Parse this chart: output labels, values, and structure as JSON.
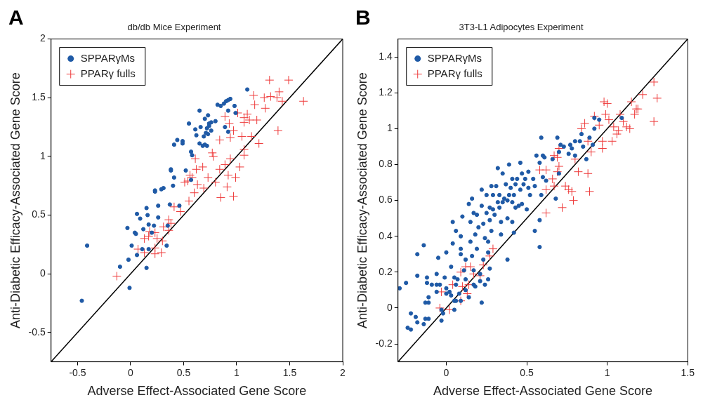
{
  "chart_data": [
    {
      "type": "scatter",
      "title": "db/db Mice Experiment",
      "xlabel": "Adverse Effect-Associated Gene Score",
      "ylabel": "Anti-Diabetic Efficacy-Associated Gene Score",
      "annotations": [
        "A"
      ],
      "legend": "top left",
      "grid": false,
      "xlim": [
        -0.75,
        2
      ],
      "xticks": [
        -0.5,
        0,
        0.5,
        1,
        1.5,
        2
      ],
      "ylim": [
        -0.75,
        2
      ],
      "yticks": [
        -0.5,
        0,
        0.5,
        1,
        1.5,
        2
      ],
      "series": [
        {
          "name": "SPPARγMs",
          "color": "#1f5aa6",
          "marker": "circle",
          "x": [
            -0.41,
            -0.46,
            -0.1,
            -0.02,
            -0.01,
            0.15,
            0.01,
            0.06,
            -0.03,
            0.04,
            0.05,
            0.06,
            0.09,
            0.15,
            0.16,
            0.12,
            0.17,
            0.22,
            0.2,
            0.11,
            0.17,
            0.26,
            0.26,
            0.34,
            0.35,
            0.37,
            0.46,
            0.23,
            0.23,
            0.29,
            0.31,
            0.4,
            0.41,
            0.38,
            0.38,
            0.52,
            0.57,
            0.41,
            0.44,
            0.49,
            0.49,
            0.57,
            0.58,
            0.55,
            0.65,
            0.61,
            0.66,
            0.62,
            0.65,
            0.68,
            0.7,
            0.72,
            0.69,
            0.71,
            0.73,
            0.72,
            0.74,
            0.76,
            0.74,
            0.76,
            0.7,
            0.73,
            0.8,
            0.82,
            0.85,
            0.88,
            0.9,
            0.92,
            0.94,
            0.98,
            0.92,
            0.99,
            0.89,
            0.92,
            1.1
          ],
          "values": [
            0.24,
            -0.23,
            0.06,
            0.12,
            -0.12,
            0.05,
            0.24,
            0.16,
            0.39,
            0.35,
            0.34,
            0.51,
            0.47,
            0.56,
            0.5,
            0.38,
            0.42,
            0.41,
            0.35,
            0.21,
            0.21,
            0.58,
            0.48,
            0.24,
            0.41,
            0.59,
            0.58,
            0.71,
            0.7,
            0.72,
            0.73,
            0.75,
            0.82,
            0.89,
            0.88,
            0.88,
            0.8,
            1.1,
            1.14,
            1.13,
            1.11,
            1.04,
            1.01,
            1.28,
            1.39,
            1.23,
            1.25,
            1.18,
            1.11,
            1.09,
            1.1,
            1.09,
            1.17,
            1.2,
            1.19,
            1.24,
            1.26,
            1.22,
            1.28,
            1.29,
            1.32,
            1.35,
            1.3,
            1.44,
            1.43,
            1.45,
            1.47,
            1.48,
            1.49,
            1.43,
            1.39,
            1.37,
            1.25,
            1.21,
            1.57
          ]
        },
        {
          "name": "PPARγ fulls",
          "color": "#ee3a3a",
          "marker": "cross",
          "x": [
            -0.13,
            0.07,
            0.13,
            0.23,
            0.29,
            0.23,
            0.13,
            0.17,
            0.25,
            0.18,
            0.23,
            0.3,
            0.31,
            0.36,
            0.38,
            0.36,
            0.41,
            0.47,
            0.55,
            0.51,
            0.54,
            0.58,
            0.56,
            0.63,
            0.6,
            0.62,
            0.68,
            0.69,
            0.73,
            0.8,
            0.61,
            0.77,
            0.78,
            0.84,
            0.92,
            0.91,
            0.85,
            0.97,
            0.99,
            1.03,
            0.89,
            0.94,
            1.07,
            1.07,
            0.84,
            0.94,
            1.05,
            1.14,
            1.21,
            0.97,
            0.89,
            0.93,
            1.01,
            1.07,
            1.07,
            1.1,
            1.12,
            1.19,
            1.17,
            1.16,
            1.26,
            1.27,
            1.32,
            1.38,
            1.4,
            1.43,
            1.39,
            1.31,
            1.49,
            1.63
          ],
          "values": [
            -0.02,
            0.21,
            0.18,
            0.17,
            0.18,
            0.22,
            0.3,
            0.32,
            0.3,
            0.36,
            0.35,
            0.28,
            0.4,
            0.46,
            0.43,
            0.37,
            0.57,
            0.53,
            0.62,
            0.78,
            0.79,
            0.82,
            0.84,
            0.76,
            0.69,
            0.89,
            0.91,
            0.73,
            0.82,
            0.78,
            0.98,
            1.03,
            1.0,
            0.89,
            0.84,
            0.74,
            0.65,
            0.66,
            0.82,
            0.91,
            0.93,
            0.98,
            1.01,
            1.06,
            1.14,
            1.16,
            1.17,
            1.17,
            1.11,
            1.22,
            1.34,
            1.28,
            1.37,
            1.29,
            1.33,
            1.36,
            1.31,
            1.31,
            1.44,
            1.52,
            1.5,
            1.41,
            1.51,
            1.5,
            1.55,
            1.47,
            1.22,
            1.65,
            1.65,
            1.47
          ]
        },
        {
          "type": "line",
          "color": "#000000",
          "marker": "none",
          "x": [
            -0.75,
            2
          ],
          "values": [
            -0.75,
            2
          ]
        }
      ]
    },
    {
      "type": "scatter",
      "title": "3T3-L1 Adipocytes Experiment",
      "xlabel": "Adverse Effect-Associated Gene Score",
      "ylabel": "Anti-Diabetic Efficacy-Associated Gene Score",
      "annotations": [
        "B"
      ],
      "legend": "top left",
      "grid": false,
      "xlim": [
        -0.3,
        1.5
      ],
      "xticks": [
        0,
        0.5,
        1,
        1.5
      ],
      "ylim": [
        -0.3,
        1.5
      ],
      "yticks": [
        -0.2,
        0,
        0.2,
        0.4,
        0.6,
        0.8,
        1,
        1.2,
        1.4
      ],
      "series": [
        {
          "name": "SPPARγMs",
          "color": "#1f5aa6",
          "marker": "circle",
          "x": [
            -0.29,
            -0.25,
            -0.22,
            -0.19,
            -0.18,
            -0.24,
            -0.22,
            -0.14,
            -0.13,
            -0.11,
            -0.18,
            -0.14,
            -0.18,
            -0.12,
            -0.12,
            -0.13,
            -0.11,
            -0.11,
            -0.09,
            -0.06,
            -0.05,
            -0.06,
            -0.04,
            -0.06,
            -0.01,
            0.0,
            0.0,
            0.02,
            0.0,
            0.03,
            0.04,
            0.04,
            0.05,
            0.05,
            0.06,
            0.06,
            0.08,
            -0.03,
            -0.02,
            0.05,
            0.07,
            0.09,
            0.09,
            0.1,
            0.09,
            0.11,
            0.12,
            0.12,
            0.14,
            0.14,
            0.15,
            0.15,
            0.16,
            0.16,
            0.17,
            0.17,
            0.18,
            0.19,
            0.19,
            0.2,
            0.21,
            0.22,
            0.22,
            0.22,
            0.23,
            0.23,
            0.24,
            0.24,
            0.25,
            0.25,
            0.26,
            0.26,
            0.27,
            0.27,
            0.27,
            0.28,
            0.28,
            0.29,
            0.29,
            0.3,
            0.31,
            0.32,
            0.32,
            0.33,
            0.33,
            0.34,
            0.34,
            0.35,
            0.35,
            0.36,
            0.37,
            0.38,
            0.38,
            0.38,
            0.39,
            0.39,
            0.4,
            0.41,
            0.41,
            0.42,
            0.42,
            0.43,
            0.43,
            0.44,
            0.45,
            0.46,
            0.46,
            0.47,
            0.47,
            0.48,
            0.49,
            0.5,
            0.51,
            0.51,
            0.52,
            0.54,
            0.55,
            0.55,
            0.56,
            0.58,
            0.58,
            0.58,
            0.59,
            0.59,
            0.6,
            0.6,
            0.61,
            0.62,
            0.66,
            0.68,
            0.69,
            0.7,
            0.7,
            0.71,
            0.73,
            0.76,
            0.77,
            0.78,
            0.8,
            0.8,
            0.83,
            0.84,
            0.85,
            0.87,
            0.89,
            0.91,
            0.92,
            0.92,
            0.95,
            1.09,
            0.41,
            0.09,
            0.12,
            0.17,
            0.18,
            0.21,
            0.26,
            0.03,
            0.06,
            -0.03
          ],
          "values": [
            0.11,
            0.14,
            -0.03,
            -0.05,
            -0.08,
            -0.11,
            -0.12,
            -0.09,
            -0.06,
            -0.06,
            0.3,
            0.35,
            0.18,
            0.17,
            0.14,
            0.03,
            0.03,
            0.06,
            0.13,
            0.19,
            0.28,
            0.13,
            0.13,
            0.09,
            0.17,
            0.31,
            0.11,
            0.09,
            0.08,
            0.23,
            0.36,
            0.48,
            0.17,
            0.04,
            0.43,
            0.13,
            0.08,
            -0.07,
            -0.03,
            -0.01,
            0.16,
            0.3,
            0.4,
            0.51,
            0.33,
            0.21,
            0.27,
            0.1,
            0.06,
            0.58,
            0.37,
            0.48,
            0.61,
            0.29,
            0.53,
            0.21,
            0.41,
            0.33,
            0.52,
            0.45,
            0.15,
            0.66,
            0.57,
            0.03,
            0.27,
            0.47,
            0.39,
            0.13,
            0.63,
            0.53,
            0.31,
            0.37,
            0.56,
            0.49,
            0.22,
            0.68,
            0.43,
            0.63,
            0.55,
            0.52,
            0.68,
            0.59,
            0.78,
            0.56,
            0.63,
            0.48,
            0.41,
            0.75,
            0.59,
            0.61,
            0.69,
            0.5,
            0.27,
            0.6,
            0.63,
            0.8,
            0.67,
            0.59,
            0.48,
            0.42,
            0.63,
            0.56,
            0.69,
            0.72,
            0.57,
            0.66,
            0.81,
            0.75,
            0.58,
            0.69,
            0.72,
            0.55,
            0.76,
            0.67,
            0.63,
            0.72,
            0.43,
            0.68,
            0.85,
            0.34,
            0.49,
            0.81,
            0.63,
            0.95,
            0.85,
            0.73,
            0.84,
            0.71,
            0.83,
            0.61,
            0.95,
            0.87,
            0.75,
            0.91,
            0.9,
            0.86,
            0.91,
            0.89,
            0.85,
            0.93,
            0.93,
            0.97,
            0.9,
            0.83,
            0.95,
            0.91,
            1.06,
            1.0,
            1.05,
            1.06,
            0.72,
            0.04,
            0.16,
            0.13,
            0.12,
            0.19,
            0.16,
            0.07,
            0.04,
            -0.01
          ]
        },
        {
          "name": "PPARγ fulls",
          "color": "#ee3a3a",
          "marker": "cross",
          "x": [
            -0.04,
            0.02,
            -0.03,
            0.04,
            0.09,
            0.09,
            0.1,
            0.13,
            0.14,
            0.12,
            0.15,
            0.17,
            0.21,
            0.23,
            0.27,
            0.29,
            0.58,
            0.62,
            0.62,
            0.62,
            0.66,
            0.67,
            0.69,
            0.7,
            0.69,
            0.67,
            0.72,
            0.74,
            0.76,
            0.78,
            0.79,
            0.8,
            0.82,
            0.88,
            0.89,
            0.7,
            0.84,
            0.86,
            0.88,
            0.9,
            0.92,
            0.95,
            0.97,
            0.97,
            0.98,
            1.0,
            0.99,
            1.01,
            1.03,
            1.04,
            1.06,
            1.07,
            1.08,
            1.1,
            1.12,
            1.14,
            1.15,
            1.17,
            1.18,
            1.19,
            1.22,
            1.29,
            1.31,
            1.29
          ],
          "values": [
            0.0,
            -0.01,
            0.09,
            0.13,
            0.2,
            0.04,
            0.12,
            0.08,
            0.13,
            0.23,
            0.23,
            0.19,
            0.18,
            0.24,
            0.29,
            0.33,
            0.77,
            0.77,
            0.53,
            0.66,
            0.72,
            0.68,
            0.76,
            0.79,
            0.84,
            0.85,
            0.56,
            0.68,
            0.66,
            0.65,
            0.6,
            0.83,
            0.76,
            0.75,
            0.65,
            0.89,
            1.0,
            1.03,
            0.93,
            0.87,
            1.07,
            1.02,
            0.93,
            0.89,
            1.15,
            1.14,
            1.08,
            1.05,
            0.93,
            1.01,
            0.97,
            0.99,
            1.08,
            1.04,
            1.01,
            1.0,
            1.15,
            1.08,
            1.11,
            1.11,
            1.19,
            1.26,
            1.17,
            1.04
          ]
        },
        {
          "type": "line",
          "color": "#000000",
          "marker": "none",
          "x": [
            -0.3,
            1.5
          ],
          "values": [
            -0.3,
            1.5
          ]
        }
      ]
    }
  ]
}
